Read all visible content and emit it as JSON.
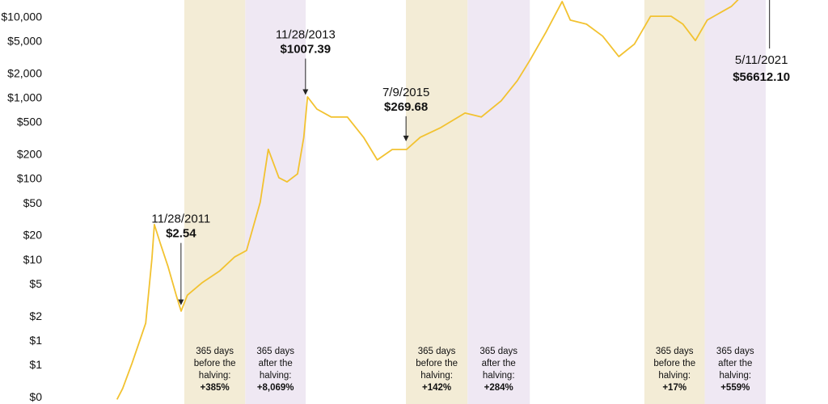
{
  "chart_data": {
    "type": "line",
    "log_y": true,
    "color": "#f2c230",
    "xlim": [
      2009.0,
      2022.3
    ],
    "ylim": [
      0.167,
      16500
    ],
    "yticks": [
      {
        "value": 10000,
        "label": "$10,000"
      },
      {
        "value": 5000,
        "label": "$5,000"
      },
      {
        "value": 2000,
        "label": "$2,000"
      },
      {
        "value": 1000,
        "label": "$1,000"
      },
      {
        "value": 500,
        "label": "$500"
      },
      {
        "value": 200,
        "label": "$200"
      },
      {
        "value": 100,
        "label": "$100"
      },
      {
        "value": 50,
        "label": "$50"
      },
      {
        "value": 20,
        "label": "$20"
      },
      {
        "value": 10,
        "label": "$10"
      },
      {
        "value": 5,
        "label": "$5"
      },
      {
        "value": 2,
        "label": "$2"
      },
      {
        "value": 1,
        "label": "$1"
      },
      {
        "value": 0.5,
        "label": "$1"
      },
      {
        "value": 0.2,
        "label": "$0"
      }
    ],
    "x": [
      2010.88,
      2010.97,
      2011.12,
      2011.23,
      2011.34,
      2011.44,
      2011.48,
      2011.57,
      2011.7,
      2011.83,
      2011.91,
      2012.01,
      2012.25,
      2012.53,
      2012.77,
      2012.96,
      2013.18,
      2013.31,
      2013.48,
      2013.61,
      2013.78,
      2013.88,
      2013.94,
      2014.09,
      2014.32,
      2014.58,
      2014.84,
      2015.06,
      2015.3,
      2015.53,
      2015.75,
      2016.08,
      2016.47,
      2016.73,
      2017.05,
      2017.31,
      2017.51,
      2017.77,
      2018.03,
      2018.16,
      2018.42,
      2018.68,
      2018.94,
      2019.19,
      2019.45,
      2019.78,
      2019.97,
      2020.17,
      2020.36,
      2020.75,
      2020.92
    ],
    "values": [
      0.19,
      0.26,
      0.53,
      0.94,
      1.67,
      10.5,
      27.6,
      16.6,
      8.3,
      3.7,
      2.35,
      3.7,
      5.3,
      7.4,
      11,
      13.2,
      52,
      235,
      105,
      93,
      117,
      331,
      1047,
      740,
      590,
      590,
      331,
      174,
      234,
      234,
      331,
      437,
      660,
      590,
      935,
      1660,
      2950,
      6600,
      15800,
      9300,
      8300,
      5900,
      3300,
      4700,
      10400,
      10400,
      8300,
      5200,
      9300,
      13800,
      18700
    ],
    "bands": [
      {
        "x0": 2011.96,
        "x1": 2012.94,
        "color": "#f3ecd6",
        "lines": [
          "365 days",
          "before the",
          "halving:"
        ],
        "change": "+385%"
      },
      {
        "x0": 2012.94,
        "x1": 2013.91,
        "color": "#efe8f3",
        "lines": [
          "365 days",
          "after the",
          "halving:"
        ],
        "change": "+8,069%"
      },
      {
        "x0": 2015.52,
        "x1": 2016.51,
        "color": "#f3ecd6",
        "lines": [
          "365 days",
          "before the",
          "halving:"
        ],
        "change": "+142%"
      },
      {
        "x0": 2016.51,
        "x1": 2017.51,
        "color": "#efe8f3",
        "lines": [
          "365 days",
          "after the",
          "halving:"
        ],
        "change": "+284%"
      },
      {
        "x0": 2019.35,
        "x1": 2020.32,
        "color": "#f3ecd6",
        "lines": [
          "365 days",
          "before the",
          "halving:"
        ],
        "change": "+17%"
      },
      {
        "x0": 2020.32,
        "x1": 2021.3,
        "color": "#efe8f3",
        "lines": [
          "365 days",
          "after the",
          "halving:"
        ],
        "change": "+559%"
      }
    ],
    "annotations": [
      {
        "date": "11/28/2011",
        "price": "$2.54",
        "value": 2.54
      },
      {
        "date": "11/28/2013",
        "price": "$1007.39",
        "value": 1007.39
      },
      {
        "date": "7/9/2015",
        "price": "$269.68",
        "value": 269.68
      },
      {
        "date": "5/11/2021",
        "price": "$56612.10",
        "value": 56612.1
      }
    ]
  }
}
